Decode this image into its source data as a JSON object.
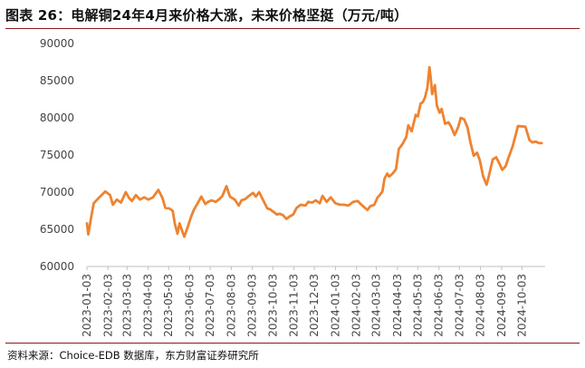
{
  "title": "图表 26：电解铜24年4月来价格大涨，未来价格坚挺（万元/吨）",
  "source": "资料来源：Choice-EDB 数据库，东方财富证券研究所",
  "chart_data": {
    "type": "line",
    "title": "图表 26：电解铜24年4月来价格大涨，未来价格坚挺（万元/吨）",
    "xlabel": "",
    "ylabel": "",
    "ylim": [
      60000,
      90000
    ],
    "yticks": [
      60000,
      65000,
      70000,
      75000,
      80000,
      85000,
      90000
    ],
    "grid": false,
    "legend": "none",
    "line_color": "#ee8331",
    "categories": [
      "2023-01-03",
      "2023-02-03",
      "2023-03-03",
      "2023-04-03",
      "2023-05-03",
      "2023-06-03",
      "2023-07-03",
      "2023-08-03",
      "2023-09-03",
      "2023-10-03",
      "2023-11-03",
      "2023-12-03",
      "2024-01-03",
      "2024-02-03",
      "2024-03-03",
      "2024-04-03",
      "2024-05-03",
      "2024-06-03",
      "2024-07-03",
      "2024-08-03",
      "2024-09-03",
      "2024-10-03"
    ],
    "series": [
      {
        "name": "",
        "points": [
          [
            "2023-01-03",
            65800
          ],
          [
            "2023-01-05",
            64300
          ],
          [
            "2023-01-09",
            66500
          ],
          [
            "2023-01-13",
            68500
          ],
          [
            "2023-01-20",
            69200
          ],
          [
            "2023-01-30",
            70100
          ],
          [
            "2023-02-06",
            69600
          ],
          [
            "2023-02-10",
            68300
          ],
          [
            "2023-02-16",
            69000
          ],
          [
            "2023-02-22",
            68600
          ],
          [
            "2023-03-01",
            70000
          ],
          [
            "2023-03-06",
            69200
          ],
          [
            "2023-03-10",
            68800
          ],
          [
            "2023-03-16",
            69600
          ],
          [
            "2023-03-22",
            69000
          ],
          [
            "2023-03-28",
            69300
          ],
          [
            "2023-04-03",
            69000
          ],
          [
            "2023-04-10",
            69300
          ],
          [
            "2023-04-18",
            70300
          ],
          [
            "2023-04-24",
            69200
          ],
          [
            "2023-04-28",
            67900
          ],
          [
            "2023-05-04",
            67800
          ],
          [
            "2023-05-09",
            67500
          ],
          [
            "2023-05-12",
            65800
          ],
          [
            "2023-05-16",
            64400
          ],
          [
            "2023-05-19",
            65800
          ],
          [
            "2023-05-24",
            64500
          ],
          [
            "2023-05-26",
            64000
          ],
          [
            "2023-05-31",
            65300
          ],
          [
            "2023-06-05",
            66700
          ],
          [
            "2023-06-09",
            67600
          ],
          [
            "2023-06-14",
            68400
          ],
          [
            "2023-06-20",
            69400
          ],
          [
            "2023-06-26",
            68400
          ],
          [
            "2023-06-30",
            68700
          ],
          [
            "2023-07-05",
            68900
          ],
          [
            "2023-07-11",
            68700
          ],
          [
            "2023-07-17",
            69100
          ],
          [
            "2023-07-21",
            69500
          ],
          [
            "2023-07-27",
            70800
          ],
          [
            "2023-08-01",
            69400
          ],
          [
            "2023-08-08",
            69000
          ],
          [
            "2023-08-14",
            68200
          ],
          [
            "2023-08-18",
            68900
          ],
          [
            "2023-08-24",
            69100
          ],
          [
            "2023-08-29",
            69500
          ],
          [
            "2023-09-04",
            69900
          ],
          [
            "2023-09-08",
            69400
          ],
          [
            "2023-09-13",
            70000
          ],
          [
            "2023-09-19",
            68900
          ],
          [
            "2023-09-25",
            67800
          ],
          [
            "2023-09-29",
            67700
          ],
          [
            "2023-10-09",
            67000
          ],
          [
            "2023-10-13",
            67100
          ],
          [
            "2023-10-18",
            66900
          ],
          [
            "2023-10-23",
            66400
          ],
          [
            "2023-10-27",
            66700
          ],
          [
            "2023-11-02",
            67000
          ],
          [
            "2023-11-07",
            67900
          ],
          [
            "2023-11-13",
            68300
          ],
          [
            "2023-11-20",
            68200
          ],
          [
            "2023-11-24",
            68700
          ],
          [
            "2023-11-30",
            68600
          ],
          [
            "2023-12-05",
            68900
          ],
          [
            "2023-12-11",
            68500
          ],
          [
            "2023-12-15",
            69500
          ],
          [
            "2023-12-21",
            68700
          ],
          [
            "2023-12-27",
            69300
          ],
          [
            "2024-01-03",
            68500
          ],
          [
            "2024-01-10",
            68300
          ],
          [
            "2024-01-16",
            68300
          ],
          [
            "2024-01-22",
            68200
          ],
          [
            "2024-01-29",
            68700
          ],
          [
            "2024-02-05",
            68800
          ],
          [
            "2024-02-09",
            68400
          ],
          [
            "2024-02-19",
            67600
          ],
          [
            "2024-02-23",
            68100
          ],
          [
            "2024-02-29",
            68300
          ],
          [
            "2024-03-05",
            69300
          ],
          [
            "2024-03-08",
            69600
          ],
          [
            "2024-03-12",
            70100
          ],
          [
            "2024-03-15",
            71800
          ],
          [
            "2024-03-19",
            72500
          ],
          [
            "2024-03-22",
            72100
          ],
          [
            "2024-03-27",
            72500
          ],
          [
            "2024-04-01",
            73100
          ],
          [
            "2024-04-05",
            75800
          ],
          [
            "2024-04-10",
            76400
          ],
          [
            "2024-04-16",
            77400
          ],
          [
            "2024-04-19",
            79000
          ],
          [
            "2024-04-24",
            78200
          ],
          [
            "2024-04-30",
            80400
          ],
          [
            "2024-05-03",
            80200
          ],
          [
            "2024-05-07",
            81900
          ],
          [
            "2024-05-10",
            82100
          ],
          [
            "2024-05-13",
            82600
          ],
          [
            "2024-05-17",
            84000
          ],
          [
            "2024-05-20",
            86800
          ],
          [
            "2024-05-22",
            85300
          ],
          [
            "2024-05-24",
            83200
          ],
          [
            "2024-05-28",
            84400
          ],
          [
            "2024-05-31",
            81600
          ],
          [
            "2024-06-04",
            80700
          ],
          [
            "2024-06-07",
            81200
          ],
          [
            "2024-06-12",
            79200
          ],
          [
            "2024-06-17",
            79400
          ],
          [
            "2024-06-21",
            78800
          ],
          [
            "2024-06-26",
            77700
          ],
          [
            "2024-07-01",
            78700
          ],
          [
            "2024-07-05",
            80000
          ],
          [
            "2024-07-10",
            79800
          ],
          [
            "2024-07-15",
            78700
          ],
          [
            "2024-07-19",
            76800
          ],
          [
            "2024-07-24",
            74900
          ],
          [
            "2024-07-29",
            75300
          ],
          [
            "2024-08-02",
            74300
          ],
          [
            "2024-08-07",
            72100
          ],
          [
            "2024-08-12",
            71000
          ],
          [
            "2024-08-16",
            72400
          ],
          [
            "2024-08-21",
            74400
          ],
          [
            "2024-08-26",
            74700
          ],
          [
            "2024-08-30",
            74000
          ],
          [
            "2024-09-04",
            73000
          ],
          [
            "2024-09-09",
            73500
          ],
          [
            "2024-09-13",
            74600
          ],
          [
            "2024-09-19",
            76100
          ],
          [
            "2024-09-24",
            77800
          ],
          [
            "2024-09-27",
            78900
          ],
          [
            "2024-10-08",
            78800
          ],
          [
            "2024-10-14",
            77000
          ],
          [
            "2024-10-18",
            76700
          ],
          [
            "2024-10-23",
            76800
          ],
          [
            "2024-10-28",
            76600
          ],
          [
            "2024-11-01",
            76600
          ]
        ]
      }
    ]
  }
}
